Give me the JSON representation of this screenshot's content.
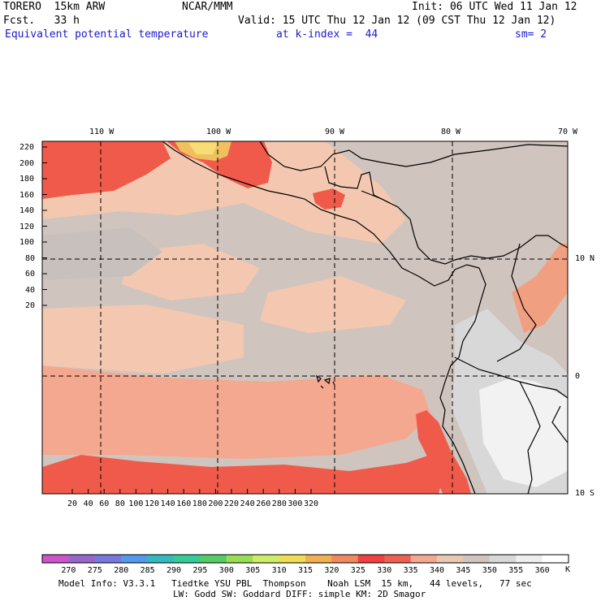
{
  "header": {
    "model": "TORERO  15km ARW",
    "center": "NCAR/MMM",
    "init": "Init: 06 UTC Wed 11 Jan 12",
    "fcst": "Fcst.   33 h",
    "valid": "Valid: 15 UTC Thu 12 Jan 12 (09 CST Thu 12 Jan 12)",
    "field": "Equivalent potential temperature",
    "level": "at k-index =  44",
    "smooth": "sm= 2"
  },
  "axes": {
    "top_lon_labels": [
      "110 W",
      "100 W",
      "90 W",
      "80 W",
      "70 W"
    ],
    "right_lat_labels": [
      "10 N",
      "0",
      "10 S"
    ],
    "left_grid_labels": [
      "220",
      "200",
      "180",
      "160",
      "140",
      "120",
      "100",
      "80",
      "60",
      "40",
      "20"
    ],
    "bottom_grid_labels": [
      "20",
      "40",
      "60",
      "80",
      "100",
      "120",
      "140",
      "160",
      "180",
      "200",
      "220",
      "240",
      "260",
      "280",
      "300",
      "320"
    ]
  },
  "colorbar": {
    "unit": "K",
    "labels": [
      "270",
      "275",
      "280",
      "285",
      "290",
      "295",
      "300",
      "305",
      "310",
      "315",
      "320",
      "325",
      "330",
      "335",
      "340",
      "345",
      "350",
      "355",
      "360"
    ],
    "colors": [
      "#cc55cc",
      "#9966cc",
      "#7777e0",
      "#5599ee",
      "#33bbbb",
      "#33cc99",
      "#55cc66",
      "#99dd55",
      "#ccee66",
      "#eedd55",
      "#f0b050",
      "#f08860",
      "#f04040",
      "#f06050",
      "#f4a890",
      "#e8c8b0",
      "#d0c4be",
      "#d8d8d8",
      "#eeeeee",
      "#ffffff"
    ]
  },
  "footer": {
    "line1": "Model Info: V3.3.1   Tiedtke YSU PBL  Thompson    Noah LSM  15 km,   44 levels,   77 sec",
    "line2": "LW: Godd SW: Goddard DIFF: simple KM: 2D Smagor"
  }
}
